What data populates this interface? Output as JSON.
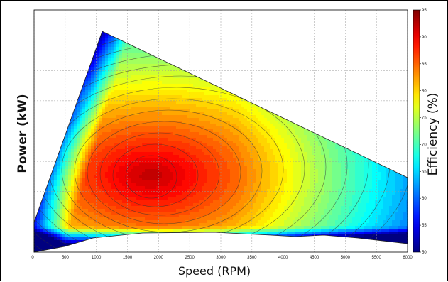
{
  "chart_data": {
    "type": "contour",
    "xlabel": "Speed (RPM)",
    "ylabel": "Power (kW)",
    "colorbar_label": "Efficiency (%)",
    "x_ticks": [
      "0",
      "500",
      "1000",
      "1500",
      "2000",
      "2500",
      "3000",
      "3500",
      "4000",
      "4500",
      "5000",
      "5500",
      "6000"
    ],
    "x_tick_values": [
      0,
      500,
      1000,
      1500,
      2000,
      2500,
      3000,
      3500,
      4000,
      4500,
      5000,
      5500,
      6000
    ],
    "xlim": [
      0,
      6000
    ],
    "colorbar_ticks": [
      "50",
      "55",
      "60",
      "65",
      "70",
      "75",
      "80",
      "85",
      "90",
      "95"
    ],
    "colorbar_range": [
      50,
      95
    ],
    "grid": true,
    "colormap": "jet",
    "peak_efficiency_region": {
      "speed_rpm": [
        1700,
        2300
      ],
      "efficiency_pct": 93
    },
    "operating_envelope_speed_rpm": [
      0,
      1200,
      6000
    ]
  }
}
